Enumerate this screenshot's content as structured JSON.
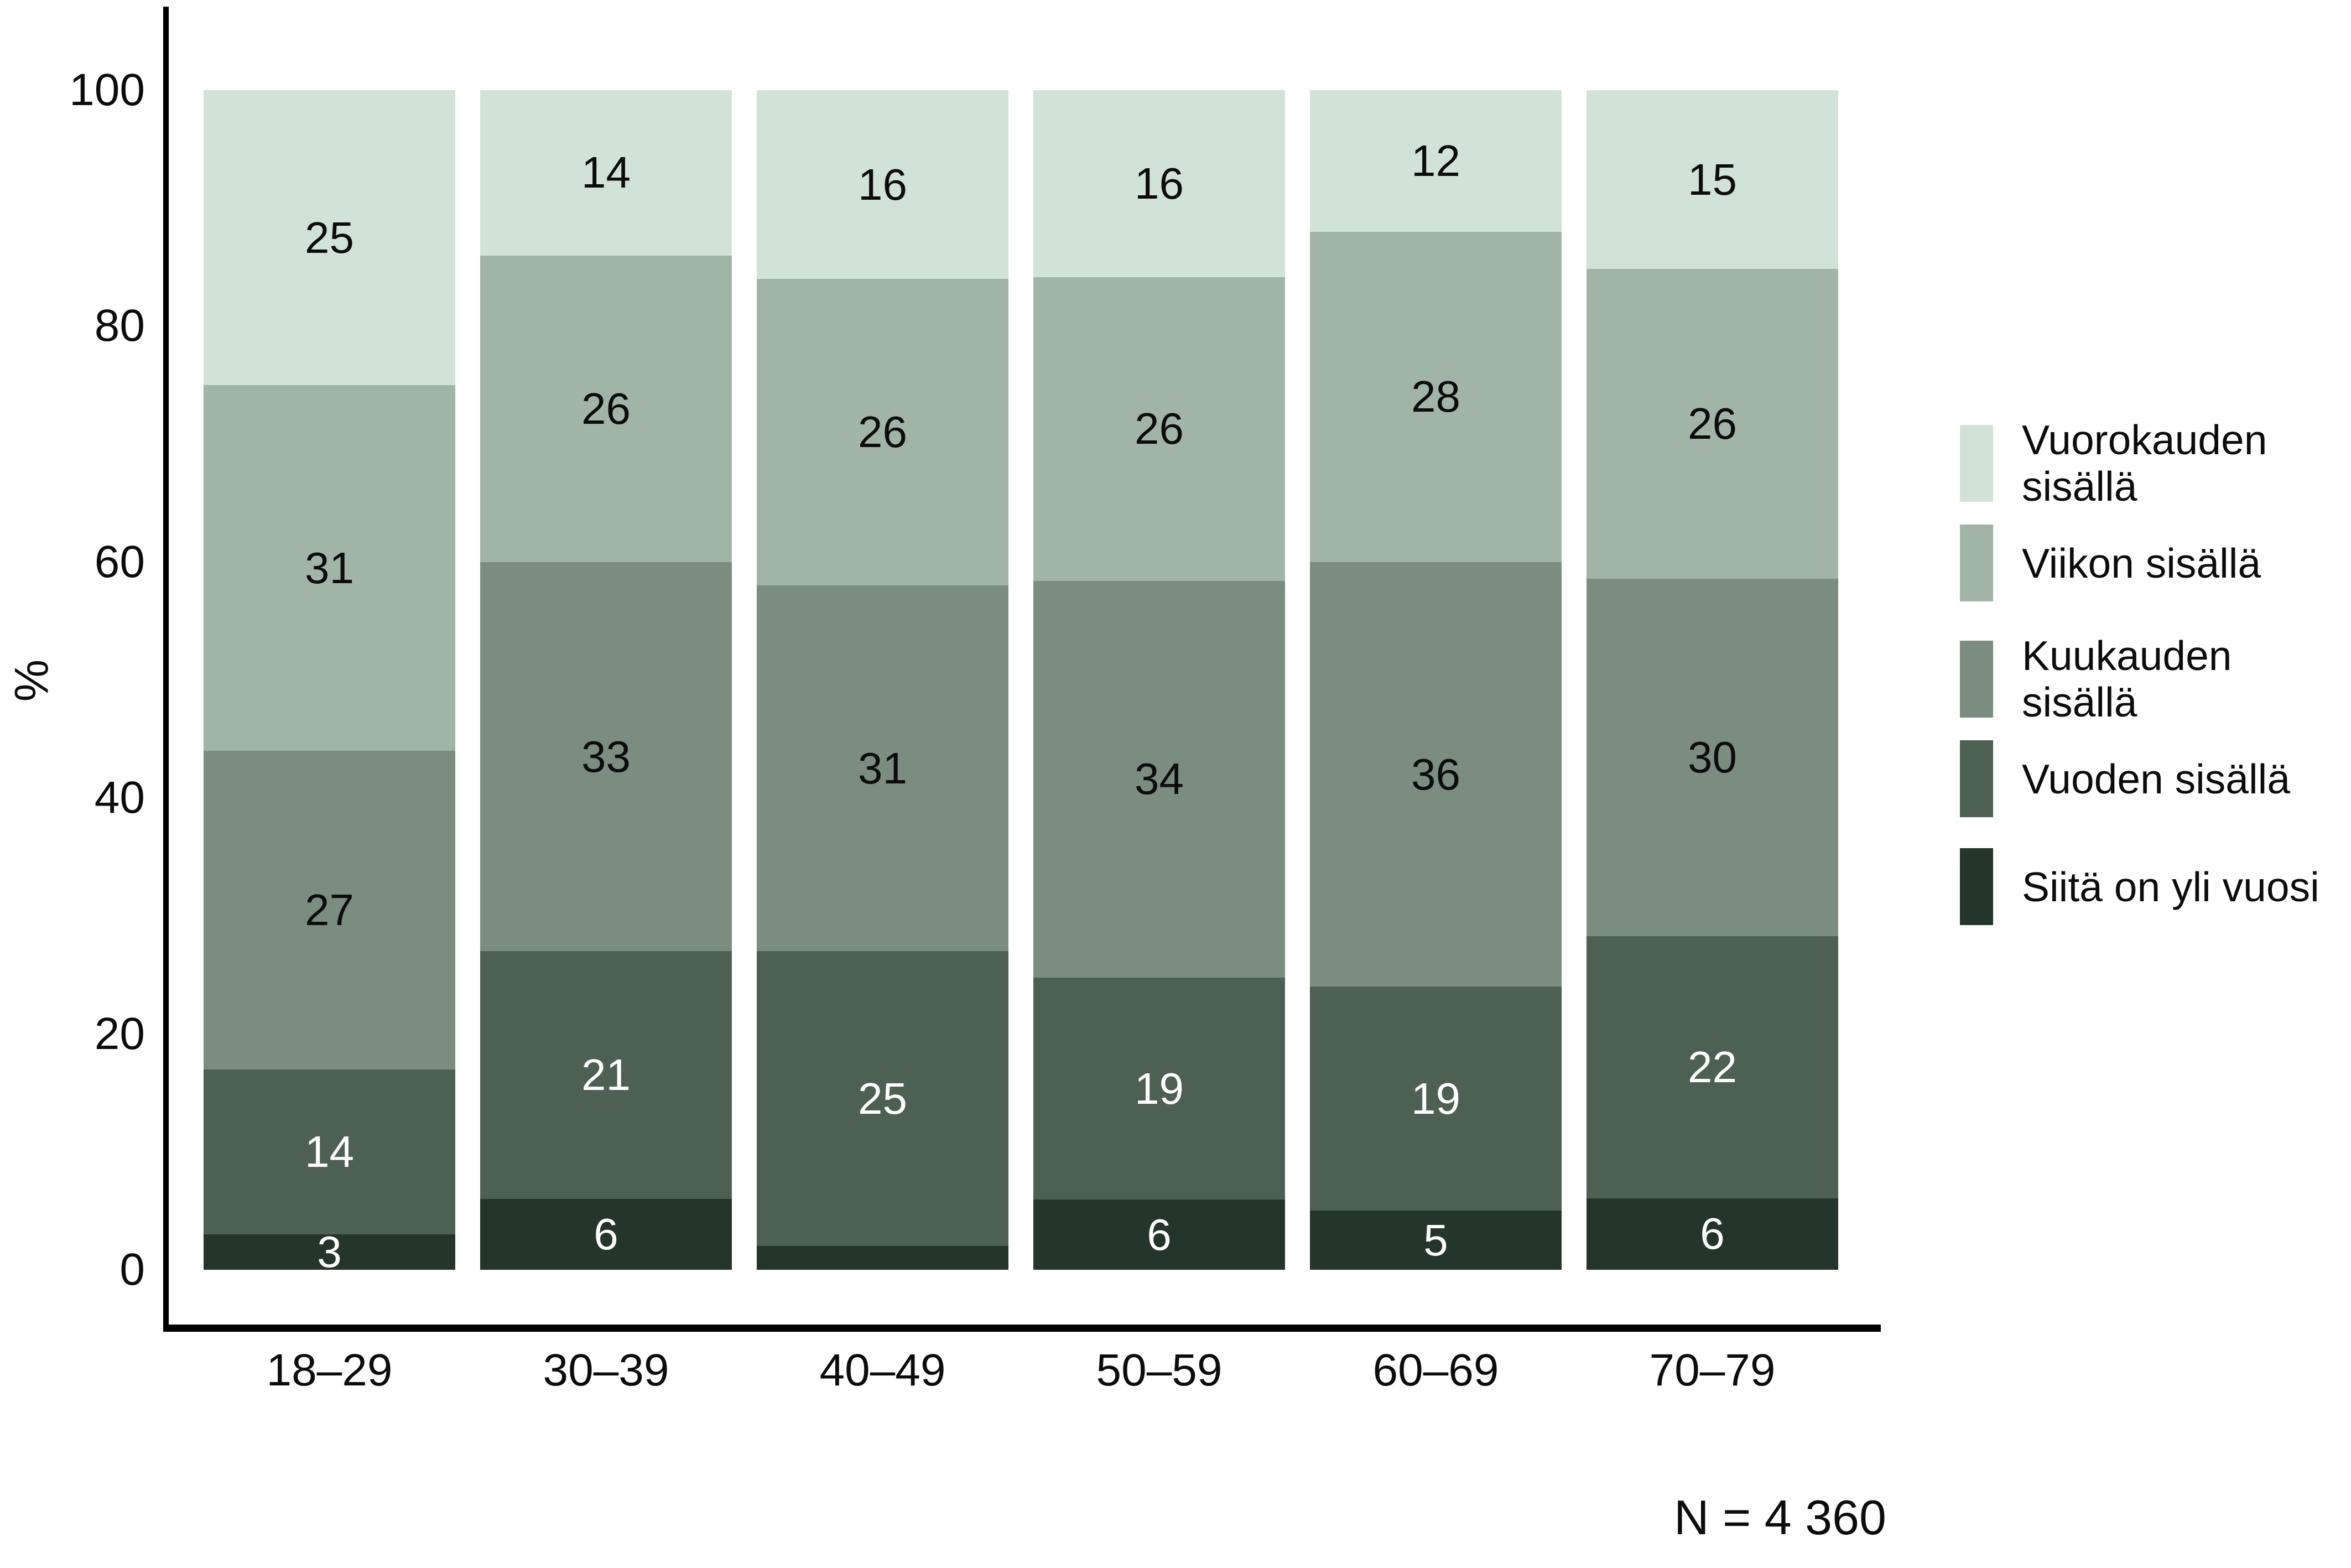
{
  "chart_data": {
    "type": "bar",
    "stacked": true,
    "title": "",
    "xlabel": "",
    "ylabel": "%",
    "ylim": [
      0,
      100
    ],
    "yticks": [
      "0",
      "20",
      "40",
      "60",
      "80",
      "100"
    ],
    "grid": false,
    "categories": [
      "18–29",
      "30–39",
      "40–49",
      "50–59",
      "60–69",
      "70–79"
    ],
    "series": [
      {
        "name": "Siitä on yli vuosi",
        "color": "#233629",
        "label_color": "#ffffff",
        "values": [
          3,
          6,
          2,
          6,
          5,
          6
        ],
        "labels": [
          "3",
          "6",
          "",
          "6",
          "5",
          "6"
        ]
      },
      {
        "name": "Vuoden sisällä",
        "color": "#4d6153",
        "label_color": "#ffffff",
        "values": [
          14,
          21,
          25,
          19,
          19,
          22
        ],
        "labels": [
          "14",
          "21",
          "25",
          "19",
          "19",
          "22"
        ]
      },
      {
        "name": "Kuukauden sisällä",
        "color": "#7a8d7e",
        "label_color": "#0c0c0c",
        "values": [
          27,
          33,
          31,
          34,
          36,
          30
        ],
        "labels": [
          "27",
          "33",
          "31",
          "34",
          "36",
          "30"
        ]
      },
      {
        "name": "Viikon sisällä",
        "color": "#a0b5a6",
        "label_color": "#0c0c0c",
        "values": [
          31,
          26,
          26,
          26,
          28,
          26
        ],
        "labels": [
          "31",
          "26",
          "26",
          "26",
          "28",
          "26"
        ]
      },
      {
        "name": "Vuorokauden sisällä",
        "color": "#d1e3d7",
        "label_color": "#0c0c0c",
        "values": [
          25,
          14,
          16,
          16,
          12,
          15
        ],
        "labels": [
          "25",
          "14",
          "16",
          "16",
          "12",
          "15"
        ]
      }
    ],
    "legend": {
      "position": "right",
      "items": [
        {
          "label": "Vuorokauden sisällä",
          "color": "#d1e3d7"
        },
        {
          "label": "Viikon sisällä",
          "color": "#a0b5a6"
        },
        {
          "label": "Kuukauden sisällä",
          "color": "#7a8d7e"
        },
        {
          "label": "Vuoden sisällä",
          "color": "#4d6153"
        },
        {
          "label": "Siitä on yli vuosi",
          "color": "#233629"
        }
      ]
    },
    "note": "N = 4 360"
  },
  "colors": {
    "background": "#ffffff",
    "axis": "#000000",
    "tick_text": "#0c0c0c"
  }
}
